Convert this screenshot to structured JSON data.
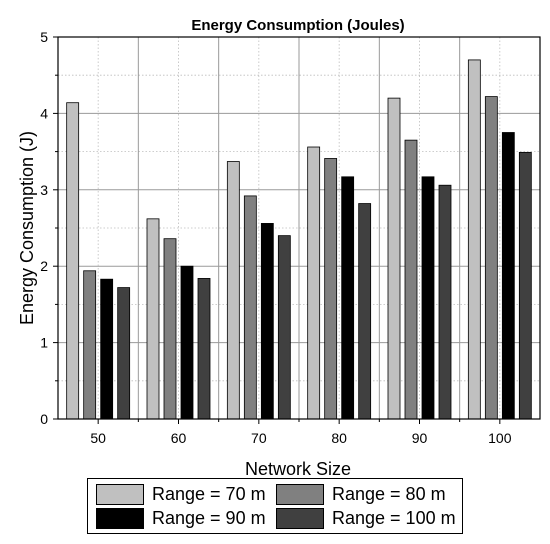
{
  "chart_data": {
    "type": "bar",
    "title": "Energy Consumption (Joules)",
    "xlabel": "Network Size",
    "ylabel": "Energy Consumption (J)",
    "categories": [
      "50",
      "60",
      "70",
      "80",
      "90",
      "100"
    ],
    "ylim": [
      0,
      5
    ],
    "yticks": [
      "0",
      "1",
      "2",
      "3",
      "4",
      "5"
    ],
    "grid": true,
    "legend_position": "bottom",
    "series": [
      {
        "name": "Range = 70 m",
        "color": "#c0c0c0",
        "values": [
          4.14,
          2.62,
          3.37,
          3.56,
          4.2,
          4.7
        ]
      },
      {
        "name": "Range = 80 m",
        "color": "#808080",
        "values": [
          1.94,
          2.36,
          2.92,
          3.41,
          3.65,
          4.22
        ]
      },
      {
        "name": "Range = 90 m",
        "color": "#000000",
        "values": [
          1.83,
          2.0,
          2.56,
          3.17,
          3.17,
          3.75
        ]
      },
      {
        "name": "Range = 100 m",
        "color": "#404040",
        "values": [
          1.72,
          1.84,
          2.4,
          2.82,
          3.06,
          3.49
        ]
      }
    ]
  }
}
